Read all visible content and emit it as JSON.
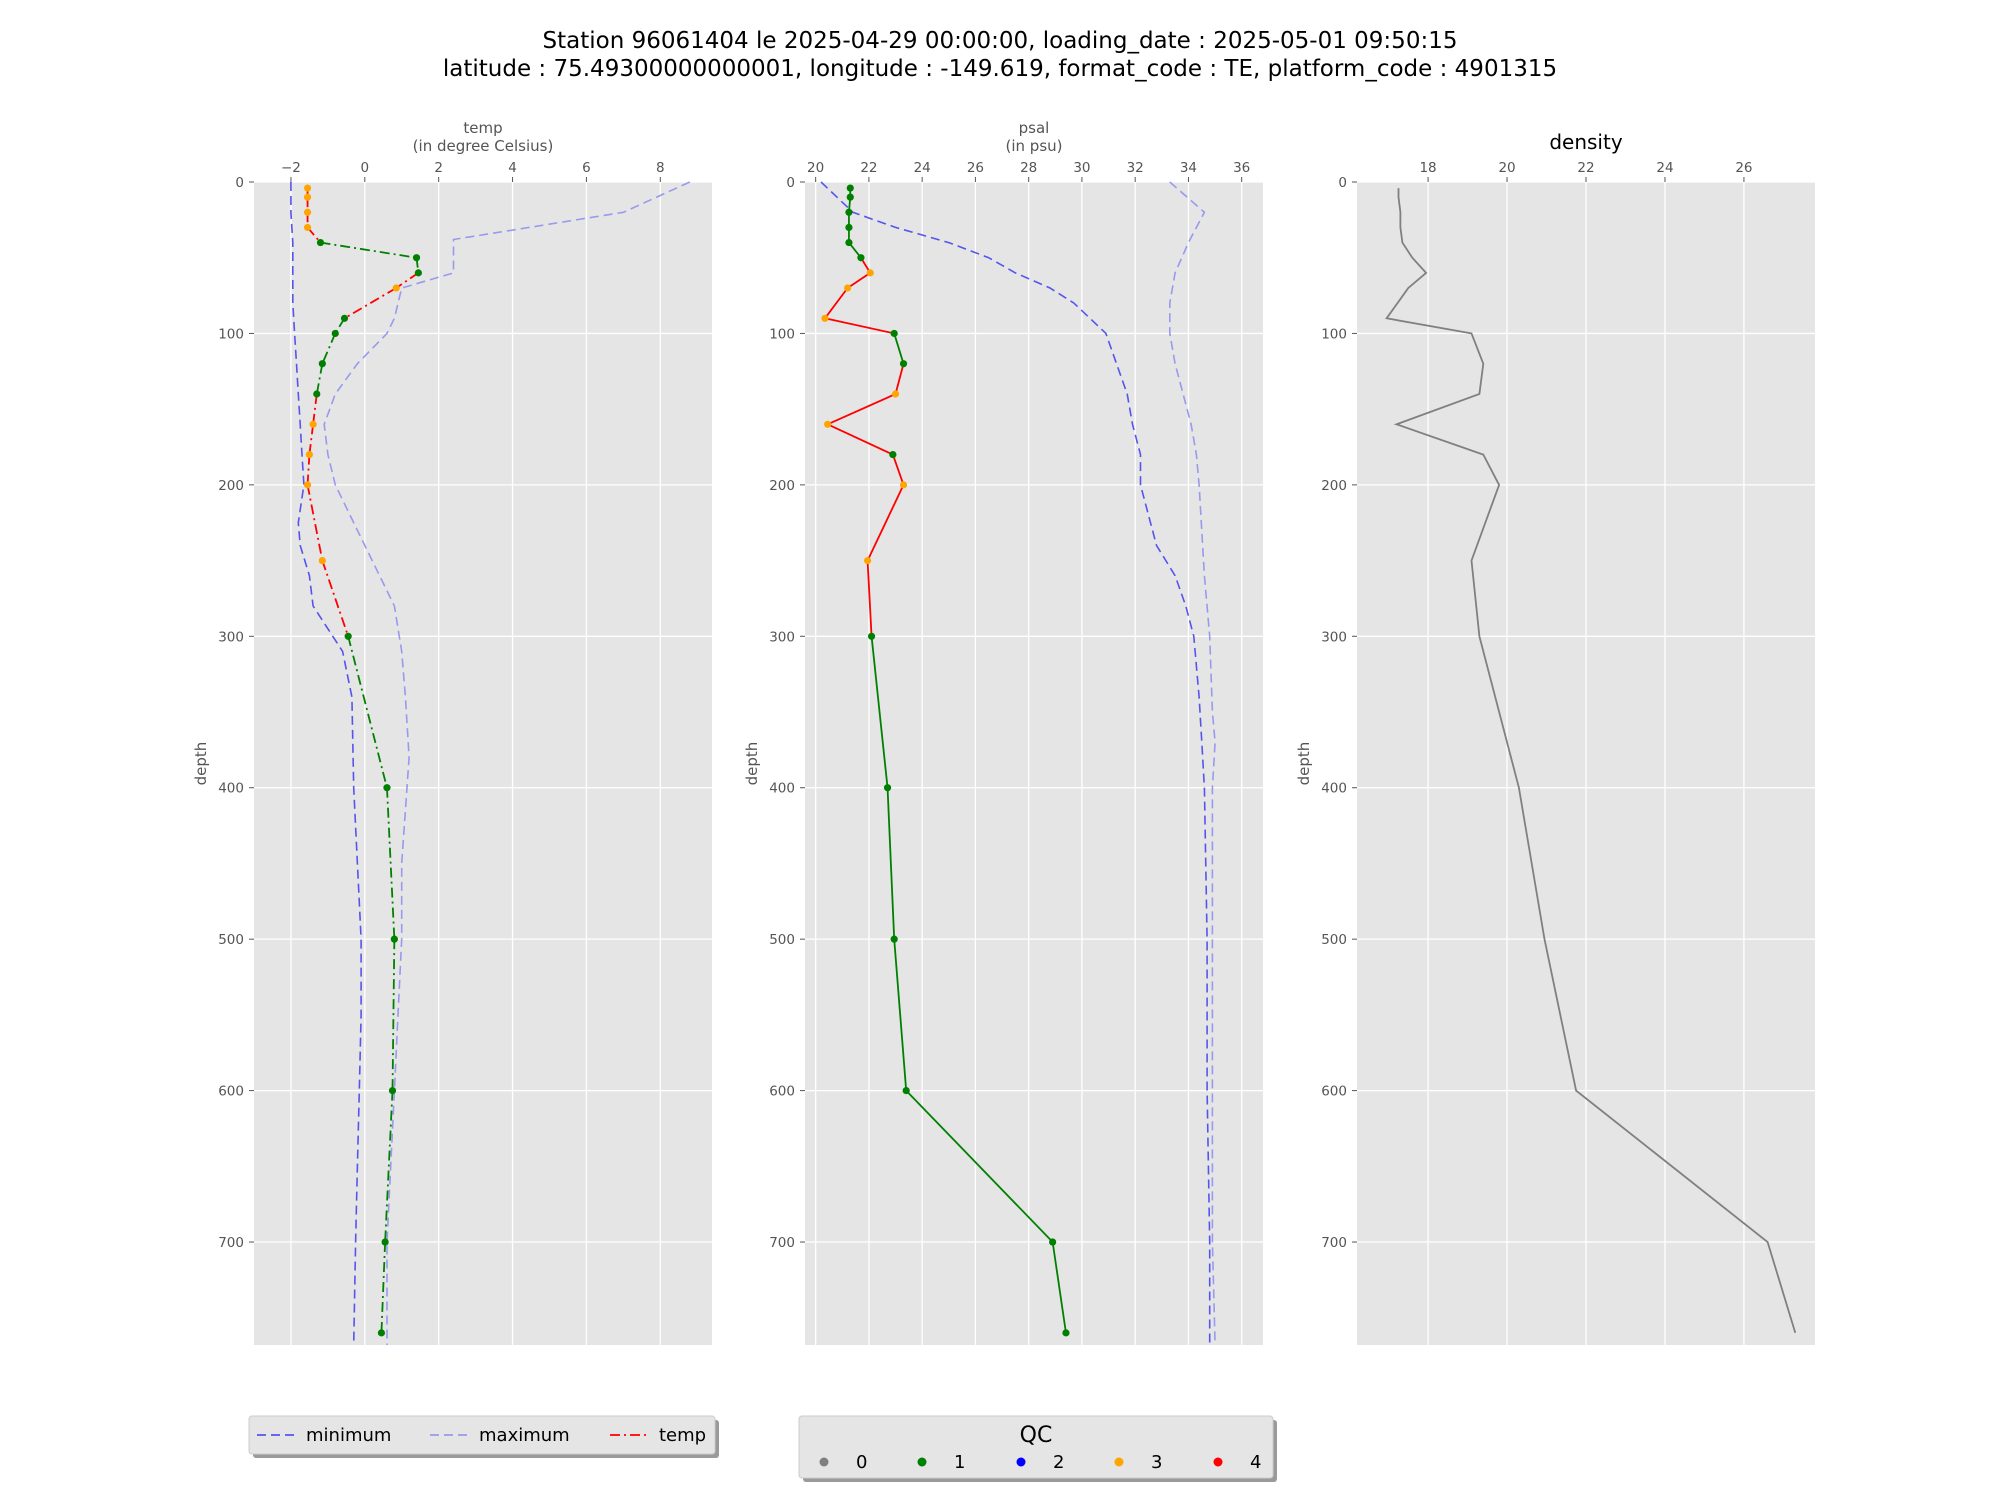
{
  "figure": {
    "title_line1": "Station 96061404 le 2025-04-29 00:00:00, loading_date : 2025-05-01 09:50:15",
    "title_line2": "latitude : 75.49300000000001, longitude : -149.619, format_code : TE, platform_code : 4901315"
  },
  "colors": {
    "background": "#e5e5e5",
    "grid": "#ffffff",
    "minimum": "#5555ee",
    "maximum": "#9999ee",
    "density": "#808080",
    "qc": {
      "0": "#808080",
      "1": "#008000",
      "2": "#0000ff",
      "3": "#ffa500",
      "4": "#ff0000"
    }
  },
  "chart_data": [
    {
      "type": "line",
      "id": "temp",
      "xlabel_line1": "temp",
      "xlabel_line2": "(in degree Celsius)",
      "ylabel": "depth",
      "xlim": [
        -3.0,
        9.4
      ],
      "ylim": [
        768,
        0
      ],
      "xticks": [
        -2,
        0,
        2,
        4,
        6,
        8
      ],
      "yticks": [
        0,
        100,
        200,
        300,
        400,
        500,
        600,
        700
      ],
      "series": [
        {
          "name": "minimum",
          "style": "dashed",
          "color": "#5555ee",
          "points": [
            [
              -2.0,
              0
            ],
            [
              -2.0,
              20
            ],
            [
              -1.95,
              40
            ],
            [
              -1.95,
              60
            ],
            [
              -1.95,
              80
            ],
            [
              -1.9,
              100
            ],
            [
              -1.85,
              120
            ],
            [
              -1.8,
              140
            ],
            [
              -1.75,
              160
            ],
            [
              -1.7,
              180
            ],
            [
              -1.65,
              200
            ],
            [
              -1.8,
              225
            ],
            [
              -1.75,
              240
            ],
            [
              -1.5,
              260
            ],
            [
              -1.4,
              280
            ],
            [
              -0.6,
              310
            ],
            [
              -0.35,
              340
            ],
            [
              -0.3,
              400
            ],
            [
              -0.2,
              450
            ],
            [
              -0.1,
              500
            ],
            [
              -0.1,
              550
            ],
            [
              -0.15,
              600
            ],
            [
              -0.2,
              650
            ],
            [
              -0.25,
              700
            ],
            [
              -0.3,
              768
            ]
          ]
        },
        {
          "name": "maximum",
          "style": "dashed",
          "color": "#9999ee",
          "points": [
            [
              8.8,
              0
            ],
            [
              7.0,
              20
            ],
            [
              2.4,
              38
            ],
            [
              2.4,
              60
            ],
            [
              1.0,
              70
            ],
            [
              0.8,
              90
            ],
            [
              0.6,
              100
            ],
            [
              -0.2,
              120
            ],
            [
              -0.8,
              140
            ],
            [
              -1.1,
              160
            ],
            [
              -1.0,
              180
            ],
            [
              -0.8,
              200
            ],
            [
              -0.2,
              230
            ],
            [
              0.4,
              260
            ],
            [
              0.8,
              280
            ],
            [
              1.0,
              310
            ],
            [
              1.1,
              340
            ],
            [
              1.2,
              380
            ],
            [
              1.0,
              450
            ],
            [
              1.0,
              500
            ],
            [
              0.9,
              550
            ],
            [
              0.8,
              600
            ],
            [
              0.7,
              650
            ],
            [
              0.6,
              700
            ],
            [
              0.6,
              768
            ]
          ]
        },
        {
          "name": "temp",
          "style": "dashdot",
          "color": "#ff0000",
          "points": [
            [
              -1.55,
              4,
              3
            ],
            [
              -1.55,
              10,
              3
            ],
            [
              -1.55,
              20,
              3
            ],
            [
              -1.55,
              30,
              3
            ],
            [
              -1.2,
              40,
              1
            ],
            [
              1.4,
              50,
              1
            ],
            [
              1.45,
              60,
              1
            ],
            [
              0.85,
              70,
              3
            ],
            [
              -0.55,
              90,
              1
            ],
            [
              -0.8,
              100,
              1
            ],
            [
              -1.15,
              120,
              1
            ],
            [
              -1.3,
              140,
              1
            ],
            [
              -1.4,
              160,
              3
            ],
            [
              -1.5,
              180,
              3
            ],
            [
              -1.55,
              200,
              3
            ],
            [
              -1.15,
              250,
              3
            ],
            [
              -0.45,
              300,
              1
            ],
            [
              0.6,
              400,
              1
            ],
            [
              0.8,
              500,
              1
            ],
            [
              0.75,
              600,
              1
            ],
            [
              0.55,
              700,
              1
            ],
            [
              0.45,
              760,
              1
            ]
          ]
        }
      ]
    },
    {
      "type": "line",
      "id": "psal",
      "xlabel_line1": "psal",
      "xlabel_line2": "(in psu)",
      "ylabel": "depth",
      "xlim": [
        19.6,
        36.8
      ],
      "ylim": [
        768,
        0
      ],
      "xticks": [
        20,
        22,
        24,
        26,
        28,
        30,
        32,
        34,
        36
      ],
      "yticks": [
        0,
        100,
        200,
        300,
        400,
        500,
        600,
        700
      ],
      "series": [
        {
          "name": "minimum",
          "style": "dashed",
          "color": "#5555ee",
          "points": [
            [
              20.2,
              0
            ],
            [
              21.4,
              20
            ],
            [
              23.0,
              30
            ],
            [
              25.0,
              40
            ],
            [
              26.5,
              50
            ],
            [
              27.5,
              60
            ],
            [
              28.8,
              70
            ],
            [
              29.7,
              80
            ],
            [
              30.9,
              100
            ],
            [
              31.3,
              120
            ],
            [
              31.7,
              140
            ],
            [
              31.9,
              160
            ],
            [
              32.2,
              180
            ],
            [
              32.2,
              200
            ],
            [
              32.5,
              220
            ],
            [
              32.8,
              240
            ],
            [
              33.5,
              260
            ],
            [
              33.9,
              280
            ],
            [
              34.2,
              300
            ],
            [
              34.4,
              340
            ],
            [
              34.5,
              370
            ],
            [
              34.6,
              400
            ],
            [
              34.7,
              500
            ],
            [
              34.7,
              600
            ],
            [
              34.8,
              700
            ],
            [
              34.8,
              768
            ]
          ]
        },
        {
          "name": "maximum",
          "style": "dashed",
          "color": "#9999ee",
          "points": [
            [
              33.3,
              0
            ],
            [
              34.6,
              20
            ],
            [
              34.0,
              40
            ],
            [
              33.5,
              60
            ],
            [
              33.3,
              80
            ],
            [
              33.3,
              100
            ],
            [
              33.5,
              120
            ],
            [
              33.8,
              140
            ],
            [
              34.1,
              160
            ],
            [
              34.3,
              180
            ],
            [
              34.4,
              200
            ],
            [
              34.6,
              260
            ],
            [
              34.8,
              300
            ],
            [
              34.9,
              350
            ],
            [
              35.0,
              370
            ],
            [
              34.9,
              400
            ],
            [
              34.9,
              500
            ],
            [
              34.9,
              600
            ],
            [
              34.9,
              700
            ],
            [
              35.0,
              768
            ]
          ]
        },
        {
          "name": "psal",
          "style": "solid",
          "color": "#ff0000",
          "points": [
            [
              21.3,
              4,
              1
            ],
            [
              21.3,
              10,
              1
            ],
            [
              21.25,
              20,
              1
            ],
            [
              21.25,
              30,
              1
            ],
            [
              21.25,
              40,
              1
            ],
            [
              21.7,
              50,
              1
            ],
            [
              22.05,
              60,
              3
            ],
            [
              21.2,
              70,
              3
            ],
            [
              20.35,
              90,
              3
            ],
            [
              22.95,
              100,
              1
            ],
            [
              23.3,
              120,
              1
            ],
            [
              23.0,
              140,
              3
            ],
            [
              20.45,
              160,
              3
            ],
            [
              22.9,
              180,
              1
            ],
            [
              23.3,
              200,
              3
            ],
            [
              21.95,
              250,
              3
            ],
            [
              22.1,
              300,
              1
            ],
            [
              22.7,
              400,
              1
            ],
            [
              22.95,
              500,
              1
            ],
            [
              23.4,
              600,
              1
            ],
            [
              28.9,
              700,
              1
            ],
            [
              29.4,
              760,
              1
            ]
          ]
        }
      ]
    },
    {
      "type": "line",
      "id": "density",
      "title": "density",
      "ylabel": "depth",
      "xlim": [
        16.2,
        27.8
      ],
      "ylim": [
        768,
        0
      ],
      "xticks": [
        18,
        20,
        22,
        24,
        26
      ],
      "yticks": [
        0,
        100,
        200,
        300,
        400,
        500,
        600,
        700
      ],
      "series": [
        {
          "name": "density",
          "style": "solid",
          "color": "#808080",
          "points": [
            [
              17.25,
              4
            ],
            [
              17.25,
              10
            ],
            [
              17.3,
              20
            ],
            [
              17.3,
              30
            ],
            [
              17.35,
              40
            ],
            [
              17.6,
              50
            ],
            [
              17.95,
              60
            ],
            [
              17.5,
              70
            ],
            [
              16.95,
              90
            ],
            [
              19.1,
              100
            ],
            [
              19.4,
              120
            ],
            [
              19.3,
              140
            ],
            [
              17.2,
              160
            ],
            [
              19.4,
              180
            ],
            [
              19.8,
              200
            ],
            [
              19.1,
              250
            ],
            [
              19.3,
              300
            ],
            [
              20.3,
              400
            ],
            [
              20.95,
              500
            ],
            [
              21.75,
              600
            ],
            [
              26.6,
              700
            ],
            [
              27.3,
              760
            ]
          ]
        }
      ]
    }
  ],
  "legend_lines": {
    "items": [
      {
        "label": "minimum",
        "style": "dashed",
        "color": "#5555ee"
      },
      {
        "label": "maximum",
        "style": "dashed",
        "color": "#9999ee"
      },
      {
        "label": "temp",
        "style": "dashdot",
        "color": "#ff0000"
      }
    ]
  },
  "legend_qc": {
    "title": "QC",
    "items": [
      {
        "label": "0",
        "color": "#808080"
      },
      {
        "label": "1",
        "color": "#008000"
      },
      {
        "label": "2",
        "color": "#0000ff"
      },
      {
        "label": "3",
        "color": "#ffa500"
      },
      {
        "label": "4",
        "color": "#ff0000"
      }
    ]
  }
}
